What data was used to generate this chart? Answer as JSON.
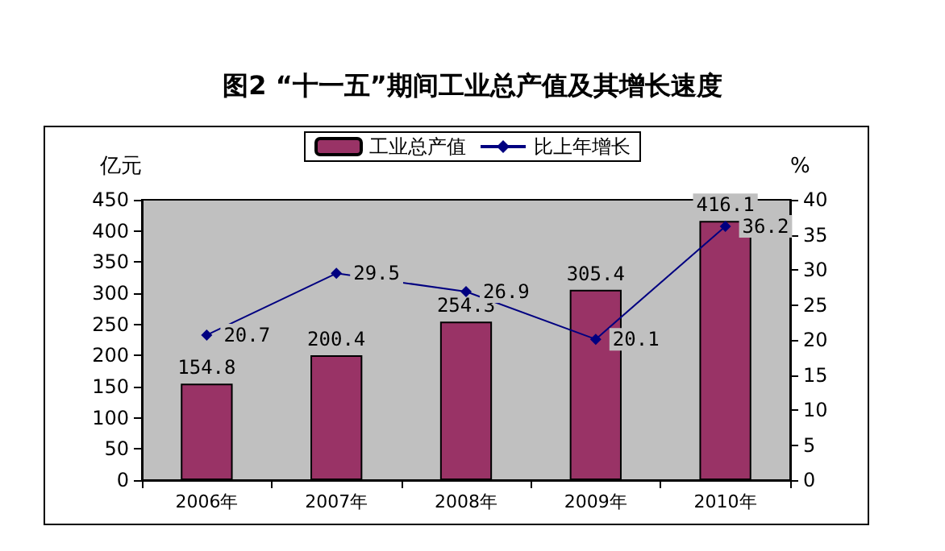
{
  "chart_data": {
    "type": "bar",
    "title": "图2 “十一五”期间工业总产值及其增长速度",
    "ylabel": "亿元",
    "y2label": "%",
    "categories": [
      "2006年",
      "2007年",
      "2008年",
      "2009年",
      "2010年"
    ],
    "series": [
      {
        "name": "工业总产值",
        "color": "#993366",
        "values": [
          154.8,
          200.4,
          254.3,
          305.4,
          416.1
        ]
      },
      {
        "name": "比上年增长",
        "type": "line",
        "axis": "y2",
        "color": "#000080",
        "values": [
          20.7,
          29.5,
          26.9,
          20.1,
          36.2
        ]
      }
    ],
    "ylim": [
      0,
      450
    ],
    "yticks": [
      0,
      50,
      100,
      150,
      200,
      250,
      300,
      350,
      400,
      450
    ],
    "y2lim": [
      0,
      40
    ],
    "y2ticks": [
      0,
      5,
      10,
      15,
      20,
      25,
      30,
      35,
      40
    ],
    "data_labels": true,
    "grid": false,
    "legend": "top",
    "marker": "diamond",
    "line_style": "solid"
  }
}
